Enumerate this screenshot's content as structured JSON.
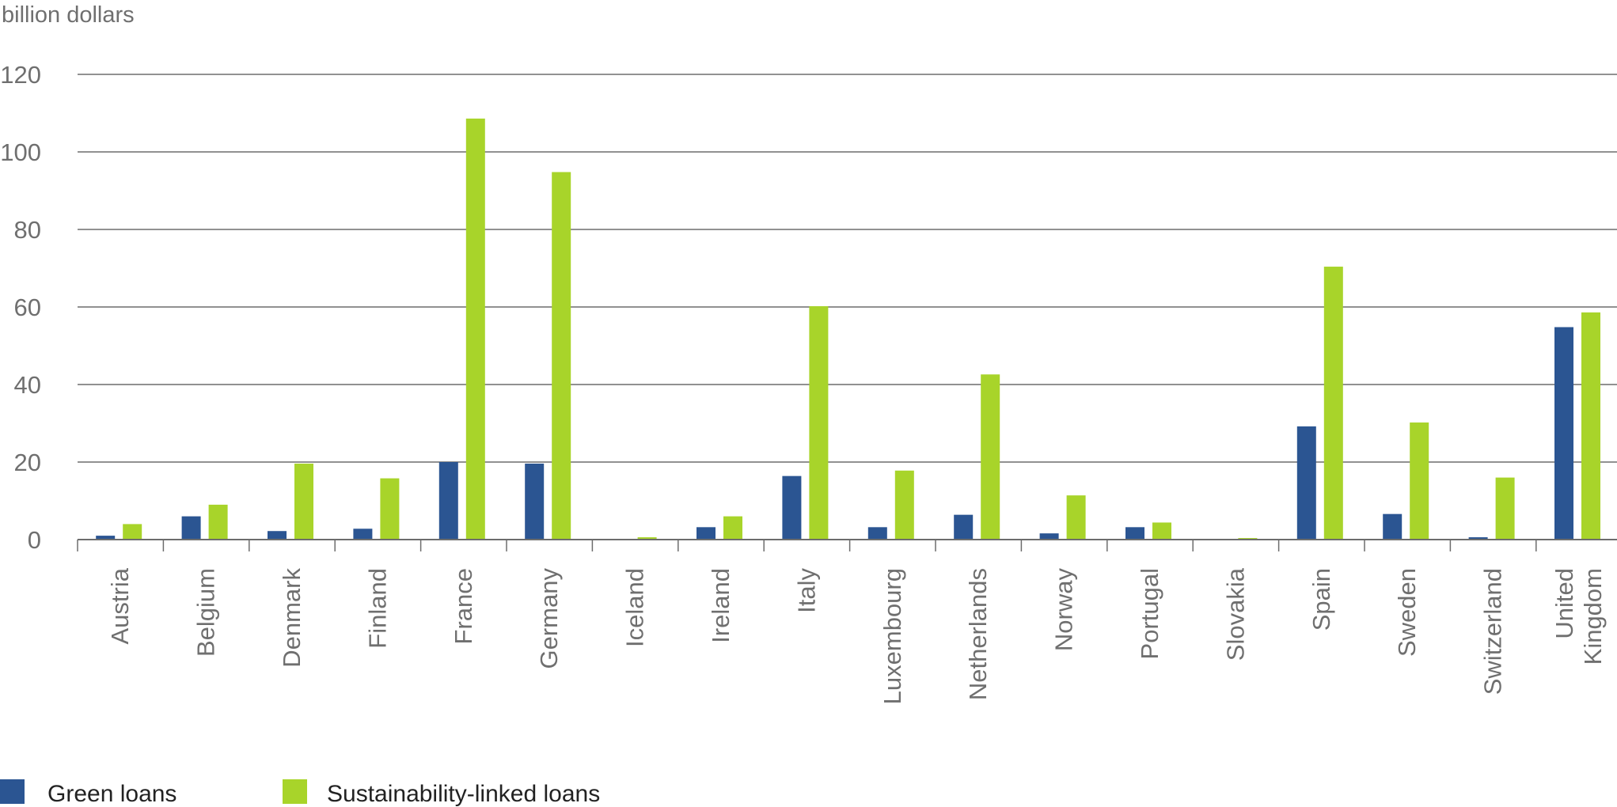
{
  "chart_data": {
    "type": "bar",
    "ylabel": "billion dollars",
    "xlabel": "",
    "ylim": [
      0,
      120
    ],
    "yticks": [
      0,
      20,
      40,
      60,
      80,
      100,
      120
    ],
    "grid": true,
    "legend_position": "bottom-left",
    "categories": [
      "Austria",
      "Belgium",
      "Denmark",
      "Finland",
      "France",
      "Germany",
      "Iceland",
      "Ireland",
      "Italy",
      "Luxembourg",
      "Netherlands",
      "Norway",
      "Portugal",
      "Slovakia",
      "Spain",
      "Sweden",
      "Switzerland",
      "United Kingdom"
    ],
    "category_label_lines": [
      [
        "Austria"
      ],
      [
        "Belgium"
      ],
      [
        "Denmark"
      ],
      [
        "Finland"
      ],
      [
        "France"
      ],
      [
        "Germany"
      ],
      [
        "Iceland"
      ],
      [
        "Ireland"
      ],
      [
        "Italy"
      ],
      [
        "Luxembourg"
      ],
      [
        "Netherlands"
      ],
      [
        "Norway"
      ],
      [
        "Portugal"
      ],
      [
        "Slovakia"
      ],
      [
        "Spain"
      ],
      [
        "Sweden"
      ],
      [
        "Switzerland"
      ],
      [
        "United",
        "Kingdom"
      ]
    ],
    "series": [
      {
        "name": "Green loans",
        "color": "#2b5592",
        "values": [
          1.0,
          6.0,
          2.2,
          2.8,
          20.0,
          19.6,
          0.1,
          3.2,
          16.4,
          3.2,
          6.4,
          1.6,
          3.2,
          0.1,
          29.2,
          6.6,
          0.6,
          54.8
        ]
      },
      {
        "name": "Sustainability-linked loans",
        "color": "#a8d42a",
        "values": [
          4.0,
          9.0,
          19.6,
          15.8,
          108.6,
          94.8,
          0.6,
          6.0,
          60.2,
          17.8,
          42.6,
          11.4,
          4.4,
          0.4,
          70.4,
          30.2,
          16.0,
          58.6
        ]
      }
    ]
  }
}
